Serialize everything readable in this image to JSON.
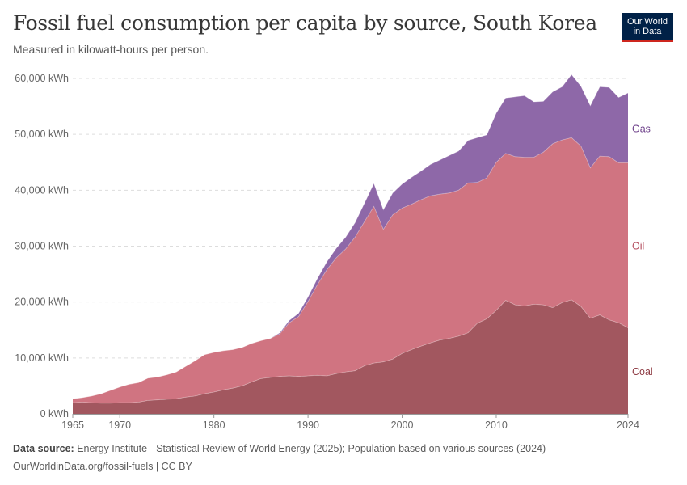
{
  "header": {
    "title": "Fossil fuel consumption per capita by source, South Korea",
    "subtitle": "Measured in kilowatt-hours per person."
  },
  "logo": {
    "line1": "Our World",
    "line2": "in Data",
    "bg": "#002147",
    "accent": "#ce261e"
  },
  "footer": {
    "source_label": "Data source:",
    "source_text": "Energy Institute - Statistical Review of World Energy (2025); Population based on various sources (2024)",
    "link": "OurWorldinData.org/fossil-fuels | CC BY"
  },
  "chart_data": {
    "type": "area",
    "stacked": true,
    "x": [
      1965,
      1966,
      1967,
      1968,
      1969,
      1970,
      1971,
      1972,
      1973,
      1974,
      1975,
      1976,
      1977,
      1978,
      1979,
      1980,
      1981,
      1982,
      1983,
      1984,
      1985,
      1986,
      1987,
      1988,
      1989,
      1990,
      1991,
      1992,
      1993,
      1994,
      1995,
      1996,
      1997,
      1998,
      1999,
      2000,
      2001,
      2002,
      2003,
      2004,
      2005,
      2006,
      2007,
      2008,
      2009,
      2010,
      2011,
      2012,
      2013,
      2014,
      2015,
      2016,
      2017,
      2018,
      2019,
      2020,
      2021,
      2022,
      2023,
      2024
    ],
    "series": [
      {
        "name": "Coal",
        "color": "#a2575f",
        "values": [
          2000,
          2100,
          2000,
          1900,
          1900,
          2000,
          2000,
          2100,
          2400,
          2500,
          2600,
          2700,
          3000,
          3200,
          3600,
          3900,
          4300,
          4600,
          5000,
          5700,
          6300,
          6500,
          6700,
          6800,
          6700,
          6800,
          6900,
          6800,
          7200,
          7500,
          7700,
          8600,
          9100,
          9300,
          9800,
          10800,
          11500,
          12100,
          12700,
          13200,
          13500,
          13900,
          14500,
          16200,
          17000,
          18500,
          20300,
          19500,
          19300,
          19600,
          19500,
          19000,
          19900,
          20400,
          19200,
          17100,
          17700,
          16800,
          16300,
          15400
        ]
      },
      {
        "name": "Oil",
        "color": "#d07481",
        "values": [
          700,
          800,
          1200,
          1700,
          2300,
          2800,
          3300,
          3500,
          4000,
          4100,
          4400,
          4800,
          5500,
          6300,
          7000,
          7100,
          7000,
          6900,
          6900,
          6900,
          6800,
          7000,
          7600,
          9500,
          10700,
          13300,
          16200,
          19000,
          20700,
          22000,
          23900,
          25800,
          28000,
          23700,
          25800,
          26000,
          26000,
          26200,
          26300,
          26100,
          26000,
          26100,
          26800,
          25200,
          25200,
          26500,
          26300,
          26500,
          26600,
          26300,
          27300,
          29300,
          29100,
          29000,
          28700,
          26900,
          28400,
          29200,
          28600,
          29500
        ]
      },
      {
        "name": "Gas",
        "color": "#8e68a8",
        "values": [
          0,
          0,
          0,
          0,
          0,
          0,
          0,
          0,
          0,
          0,
          0,
          0,
          0,
          0,
          0,
          0,
          0,
          0,
          0,
          0,
          0,
          0,
          200,
          400,
          600,
          800,
          1100,
          1400,
          1700,
          2100,
          2600,
          3300,
          4100,
          3500,
          3900,
          4300,
          4800,
          5100,
          5600,
          6100,
          6700,
          7000,
          7600,
          8000,
          7700,
          8800,
          9900,
          10700,
          11000,
          9900,
          9100,
          9300,
          9500,
          11300,
          10700,
          11100,
          12400,
          12400,
          11700,
          12500
        ]
      }
    ],
    "ylim": [
      0,
      60000
    ],
    "yticks": [
      {
        "v": 0,
        "label": "0 kWh"
      },
      {
        "v": 10000,
        "label": "10,000 kWh"
      },
      {
        "v": 20000,
        "label": "20,000 kWh"
      },
      {
        "v": 30000,
        "label": "30,000 kWh"
      },
      {
        "v": 40000,
        "label": "40,000 kWh"
      },
      {
        "v": 50000,
        "label": "50,000 kWh"
      },
      {
        "v": 60000,
        "label": "60,000 kWh"
      }
    ],
    "xticks": [
      1965,
      1970,
      1980,
      1990,
      2000,
      2010,
      2024
    ],
    "labels": [
      {
        "series": "Gas",
        "text": "Gas",
        "value": 51000,
        "color": "#6d3f8a"
      },
      {
        "series": "Oil",
        "text": "Oil",
        "value": 30000,
        "color": "#b24a5b"
      },
      {
        "series": "Coal",
        "text": "Coal",
        "value": 7500,
        "color": "#8e3b44"
      }
    ],
    "grid": true,
    "legend": "inline-right"
  }
}
